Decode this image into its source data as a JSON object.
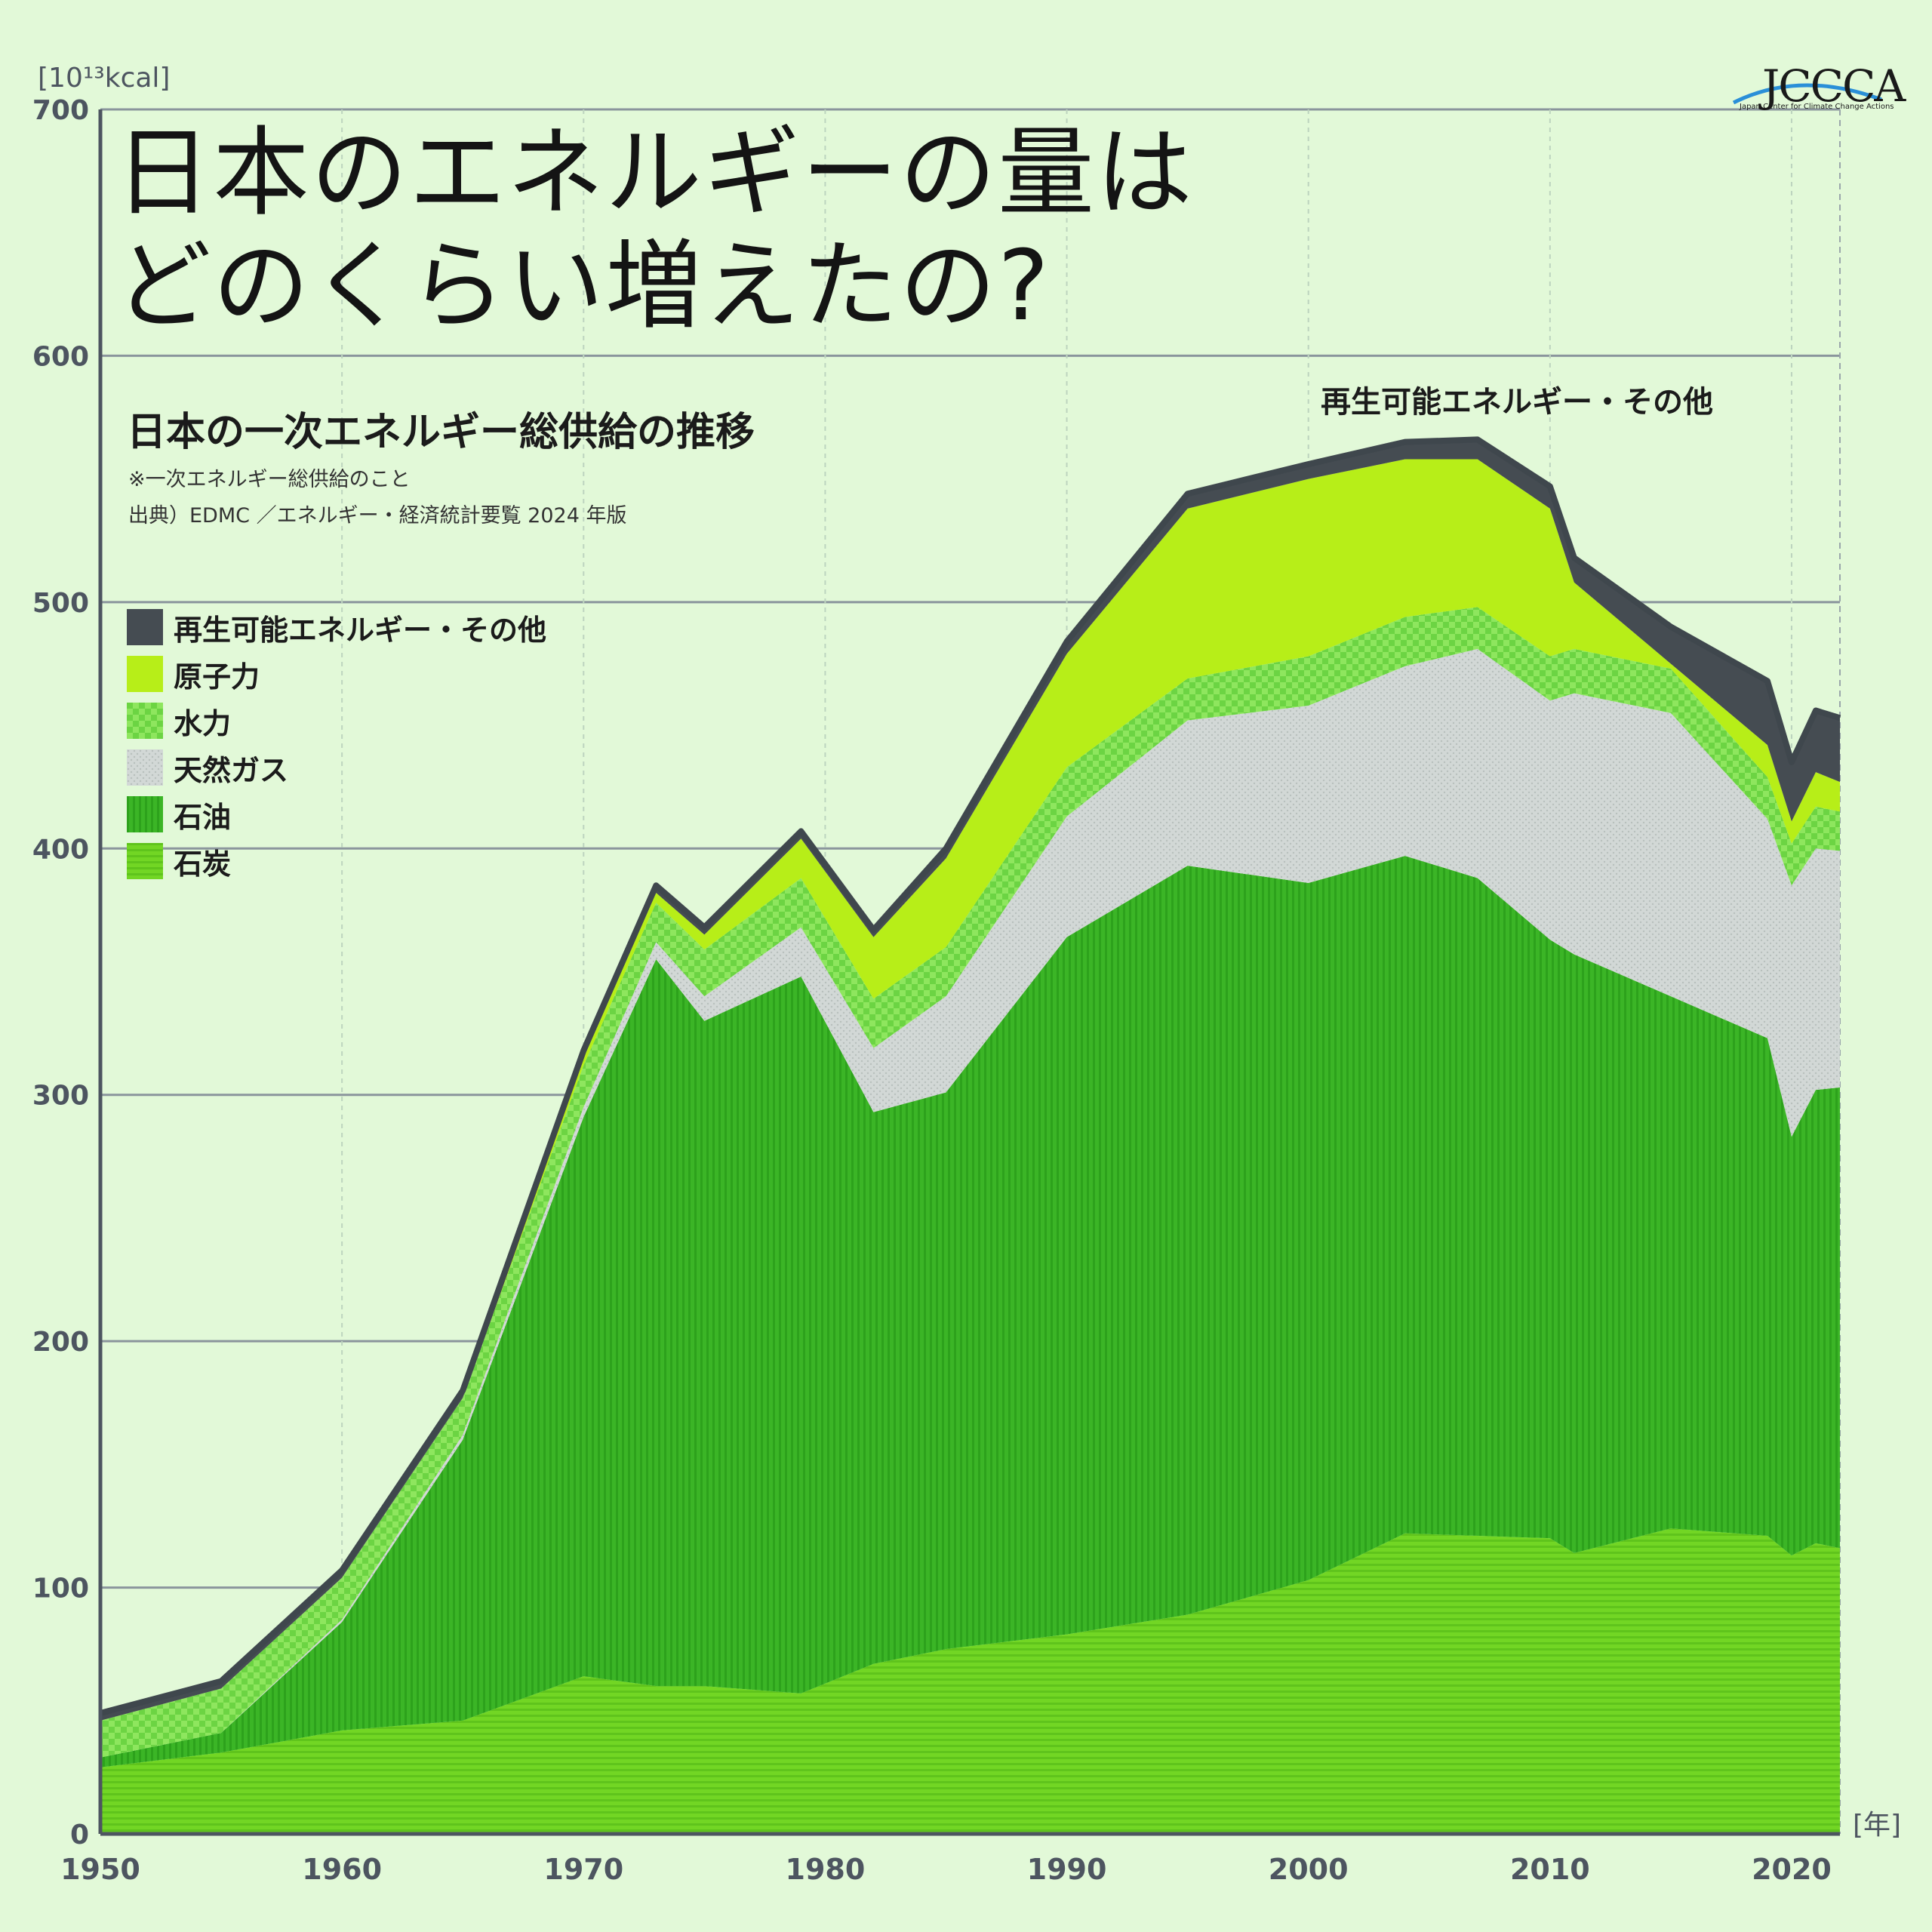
{
  "title_line1": "日本のエネルギーの量は",
  "title_line2": "どのくらい増えたの?",
  "subtitle": "日本の一次エネルギー総供給の推移",
  "note": "※一次エネルギー総供給のこと",
  "source": "出典）EDMC ／エネルギー・経済統計要覧 2024 年版",
  "callout": "再生可能エネルギー・その他",
  "logo": {
    "name": "JCCCA",
    "sub": "Japan Center for Climate Change Actions"
  },
  "colors": {
    "background": "#e2f9d8",
    "coal": "#72d624",
    "oil": "#3bb526",
    "gas": "#d2d8d6",
    "hydro": "#8ee65e",
    "nuclear": "#b7ee18",
    "renewable": "#454c52",
    "grid": "#8a959c",
    "outline": "#3f474d"
  },
  "chart_data": {
    "type": "area",
    "stacked": true,
    "ylabel": "[10¹³kcal]",
    "xlabel": "[年]",
    "ylim": [
      0,
      700
    ],
    "xlim": [
      1950,
      2022
    ],
    "yticks": [
      0,
      100,
      200,
      300,
      400,
      500,
      600,
      700
    ],
    "xticks": [
      1950,
      1960,
      1970,
      1980,
      1990,
      2000,
      2010,
      2020
    ],
    "legend_position": "left",
    "years": [
      1950,
      1955,
      1960,
      1965,
      1970,
      1973,
      1975,
      1979,
      1982,
      1985,
      1990,
      1995,
      2000,
      2004,
      2007,
      2010,
      2011,
      2015,
      2019,
      2020,
      2021,
      2022
    ],
    "series": [
      {
        "name": "石炭",
        "key": "coal",
        "color": "#72d624",
        "values": [
          27,
          33,
          42,
          46,
          64,
          60,
          60,
          57,
          69,
          75,
          81,
          89,
          103,
          122,
          121,
          120,
          114,
          124,
          121,
          113,
          118,
          116
        ]
      },
      {
        "name": "石油",
        "key": "oil",
        "color": "#3bb526",
        "values": [
          4,
          8,
          44,
          114,
          227,
          295,
          270,
          291,
          224,
          226,
          283,
          304,
          283,
          275,
          267,
          243,
          243,
          216,
          202,
          170,
          184,
          187
        ]
      },
      {
        "name": "天然ガス",
        "key": "gas",
        "color": "#d2d8d6",
        "values": [
          0,
          0,
          1,
          2,
          4,
          7,
          10,
          20,
          26,
          39,
          49,
          59,
          72,
          77,
          93,
          97,
          106,
          115,
          89,
          102,
          98,
          96
        ]
      },
      {
        "name": "水力",
        "key": "hydro",
        "color": "#8ee65e",
        "values": [
          15,
          18,
          17,
          15,
          17,
          16,
          19,
          20,
          20,
          20,
          20,
          17,
          20,
          20,
          17,
          18,
          18,
          18,
          17,
          17,
          17,
          16
        ]
      },
      {
        "name": "原子力",
        "key": "nuclear",
        "color": "#b7ee18",
        "values": [
          0,
          0,
          0,
          0,
          3,
          4,
          6,
          16,
          25,
          36,
          46,
          69,
          72,
          64,
          60,
          60,
          27,
          2,
          13,
          9,
          14,
          12
        ]
      },
      {
        "name": "再生可能エネルギー・その他",
        "key": "renewable",
        "color": "#454c52",
        "values": [
          3,
          3,
          3,
          3,
          3,
          3,
          3,
          3,
          3,
          4,
          5,
          6,
          6,
          7,
          8,
          9,
          10,
          15,
          26,
          24,
          25,
          26
        ]
      }
    ]
  }
}
